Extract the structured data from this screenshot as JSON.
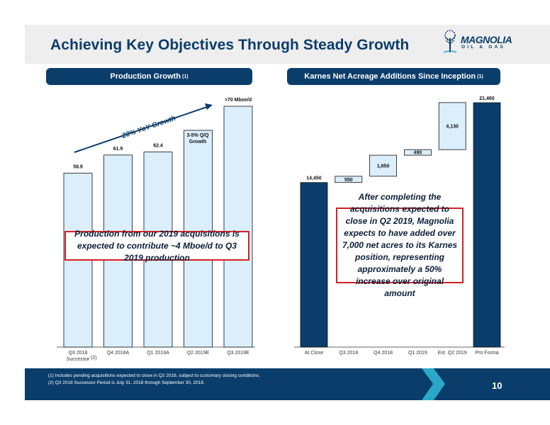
{
  "title": "Achieving Key Objectives Through Steady Growth",
  "logo": {
    "name": "MAGNOLIA",
    "sub": "OIL & GAS",
    "icon": "tree-icon"
  },
  "colors": {
    "navy": "#0b3d6b",
    "bar_fill": "#dbeefb",
    "red": "#d42027",
    "teal": "#2aa7c9"
  },
  "left_panel": {
    "header": "Production Growth",
    "header_note": "(1)",
    "growth_label": "~20% YoY Growth",
    "qq_label_line1": "3-5% Q/Q",
    "qq_label_line2": "Growth",
    "callout": "Production from our 2019 acquisitions is expected to contribute ~4 Mboe/d to Q3 2019 production",
    "successor_note": "(2)"
  },
  "right_panel": {
    "header": "Karnes Net Acreage Additions Since Inception",
    "header_note": "(1)",
    "callout": "After completing the acquisitions expected to close in Q2 2019, Magnolia expects to have added over 7,000 net acres to its Karnes position, representing approximately a 50% increase over original amount"
  },
  "chart_data": [
    {
      "type": "bar",
      "categories": [
        "Q3 2018 Successor",
        "Q4 2018A",
        "Q1 2019A",
        "Q2 2019E",
        "Q3 2019E"
      ],
      "values": [
        58.9,
        61.9,
        62.4,
        66,
        70
      ],
      "value_labels": [
        "58.9",
        "61.9",
        "62.4",
        "",
        ">70 Mboe/d"
      ],
      "estimated": [
        false,
        false,
        false,
        true,
        true
      ]
    },
    {
      "type": "bar",
      "subtype": "waterfall",
      "categories": [
        "At Close",
        "Q3 2018",
        "Q4 2018",
        "Q1 2019",
        "Est. Q2 2019",
        "Pro Forma"
      ],
      "values": [
        14450,
        550,
        1850,
        490,
        4130,
        21460
      ],
      "value_labels": [
        "14,450",
        "550",
        "1,850",
        "490",
        "4,130",
        "21,460"
      ],
      "kinds": [
        "total",
        "delta",
        "delta",
        "delta",
        "delta",
        "total"
      ]
    }
  ],
  "footer": {
    "notes": [
      "(1)  Includes pending acquisitions expected to close in Q2 2019, subject to customary closing conditions.",
      "(2)  Q3 2018 Successor Period is July 31, 2018 through September 30, 2018."
    ],
    "page_number": "10"
  }
}
